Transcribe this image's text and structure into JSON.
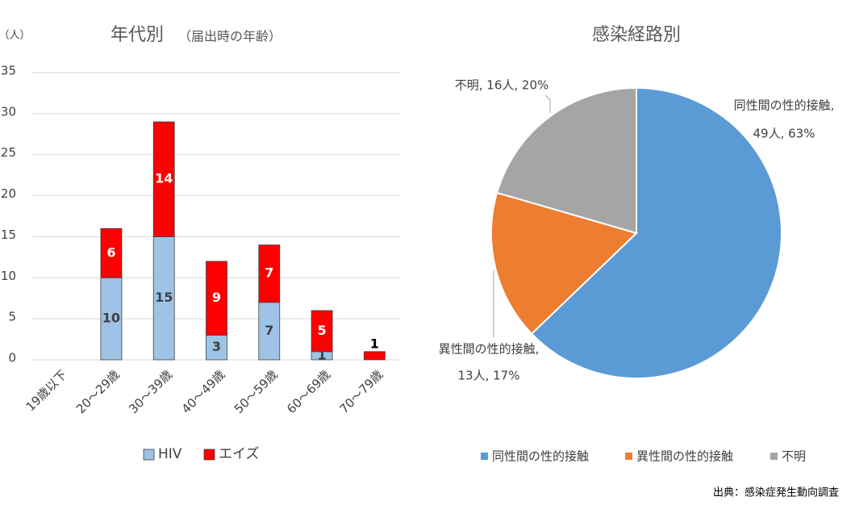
{
  "chart_data": [
    {
      "type": "bar",
      "title": "年代別",
      "subtitle": "（届出時の年齢）",
      "y_unit": "（人）",
      "categories": [
        "19歳以下",
        "20～29歳",
        "30～39歳",
        "40～49歳",
        "50～59歳",
        "60～69歳",
        "70～79歳"
      ],
      "series": [
        {
          "name": "HIV",
          "color": "#9dc3e6",
          "label_color": "#404040",
          "values": [
            null,
            10,
            15,
            3,
            7,
            1,
            null
          ]
        },
        {
          "name": "エイズ",
          "color": "#ff0000",
          "label_color": "#ffffff",
          "values": [
            null,
            6,
            14,
            9,
            7,
            5,
            1
          ]
        }
      ],
      "stacked": true,
      "ylim": [
        0,
        35
      ],
      "yticks": [
        0,
        5,
        10,
        15,
        20,
        25,
        30,
        35
      ],
      "grid": true
    },
    {
      "type": "pie",
      "title": "感染経路別",
      "categories": [
        "同性間の性的接触",
        "異性間の性的接触",
        "不明"
      ],
      "values": [
        49,
        13,
        16
      ],
      "colors": [
        "#5b9bd5",
        "#ed7d31",
        "#a5a5a5"
      ],
      "data_labels": [
        [
          "同性間の性的接触,",
          "49人, 63%"
        ],
        [
          "異性間の性的接触,",
          "13人, 17%"
        ],
        [
          "不明, 16人, 20%"
        ]
      ]
    }
  ],
  "source": "出典：感染症発生動向調査"
}
